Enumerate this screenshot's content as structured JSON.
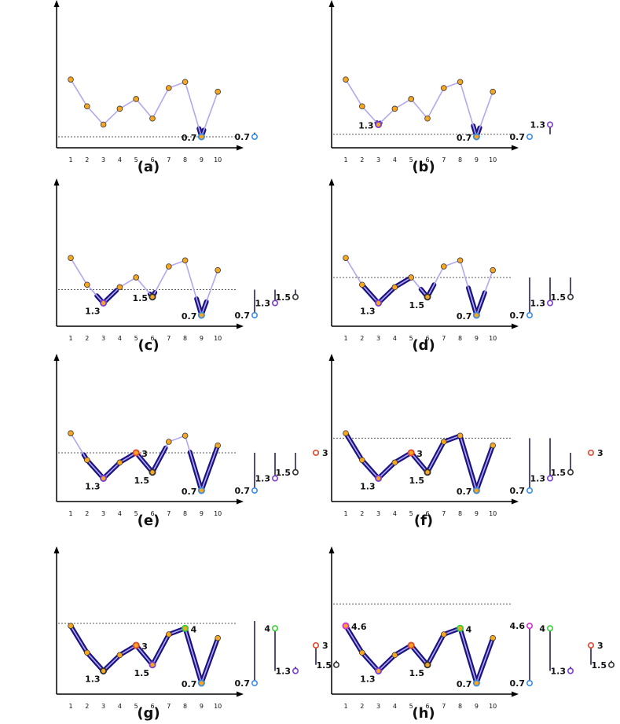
{
  "x_ticks": [
    "1",
    "2",
    "3",
    "4",
    "5",
    "6",
    "7",
    "8",
    "9",
    "10"
  ],
  "series": [
    7.2,
    5.0,
    3.5,
    4.8,
    5.6,
    4.0,
    6.5,
    7.0,
    2.5,
    6.2
  ],
  "point_color": "#f5a623",
  "line_color": "#b3a6f2",
  "band_color": "#1a1480",
  "colors": {
    "blue": "#3a8ee6",
    "purple": "#7a3fd0",
    "dark": "#333333",
    "red": "#e0452b",
    "green": "#35d035",
    "magenta": "#d52fd5"
  },
  "panels": [
    {
      "caption": "(a)",
      "level": 2.5,
      "bands": [
        {
          "from": 8.85,
          "to": 9.15
        }
      ],
      "markers": [
        {
          "i": 9,
          "color": "blue",
          "label": "0.7",
          "side": "left"
        }
      ],
      "bars": [
        {
          "value": "0.7",
          "color": "blue",
          "birth": 2.5,
          "death": 2.5
        }
      ]
    },
    {
      "caption": "(b)",
      "level": 2.7,
      "bands": [
        {
          "from": 2.9,
          "to": 3.1
        },
        {
          "from": 8.8,
          "to": 9.2
        }
      ],
      "markers": [
        {
          "i": 3,
          "color": "purple",
          "label": "1.3",
          "side": "left"
        },
        {
          "i": 9,
          "color": "blue",
          "label": "0.7",
          "side": "left"
        }
      ],
      "bars": [
        {
          "value": "0.7",
          "color": "blue",
          "birth": 2.5,
          "death": 2.7
        },
        {
          "value": "1.3",
          "color": "purple",
          "birth": 3.5,
          "death": 2.7
        }
      ]
    },
    {
      "caption": "(c)",
      "level": 4.6,
      "bands": [
        {
          "from": 2.6,
          "to": 3.8
        },
        {
          "from": 5.85,
          "to": 6.15
        },
        {
          "from": 8.7,
          "to": 9.3
        }
      ],
      "markers": [
        {
          "i": 3,
          "color": "purple",
          "label": "1.3",
          "side": "below"
        },
        {
          "i": 6,
          "color": "dark",
          "label": "1.5",
          "side": "left"
        },
        {
          "i": 9,
          "color": "blue",
          "label": "0.7",
          "side": "left"
        }
      ],
      "bars": [
        {
          "value": "0.7",
          "color": "blue",
          "birth": 2.5,
          "death": 4.6
        },
        {
          "value": "1.3",
          "color": "purple",
          "birth": 3.5,
          "death": 4.6
        },
        {
          "value": "1.5",
          "color": "dark",
          "birth": 4.0,
          "death": 4.6
        }
      ]
    },
    {
      "caption": "(d)",
      "level": 5.6,
      "bands": [
        {
          "from": 2.1,
          "to": 5.0
        },
        {
          "from": 5.6,
          "to": 6.4
        },
        {
          "from": 8.5,
          "to": 9.5
        }
      ],
      "markers": [
        {
          "i": 3,
          "color": "purple",
          "label": "1.3",
          "side": "below"
        },
        {
          "i": 6,
          "color": "dark",
          "label": "1.5",
          "side": "below"
        },
        {
          "i": 9,
          "color": "blue",
          "label": "0.7",
          "side": "left"
        }
      ],
      "bars": [
        {
          "value": "0.7",
          "color": "blue",
          "birth": 2.5,
          "death": 5.6
        },
        {
          "value": "1.3",
          "color": "purple",
          "birth": 3.5,
          "death": 5.6
        },
        {
          "value": "1.5",
          "color": "dark",
          "birth": 4.0,
          "death": 5.6
        }
      ]
    },
    {
      "caption": "(e)",
      "level": 5.6,
      "bands": [
        {
          "from": 1.8,
          "to": 5.0
        },
        {
          "from": 5.0,
          "to": 6.8
        },
        {
          "from": 8.3,
          "to": 10.0
        }
      ],
      "markers": [
        {
          "i": 3,
          "color": "purple",
          "label": "1.3",
          "side": "below"
        },
        {
          "i": 5,
          "color": "red",
          "label": "3",
          "side": "right"
        },
        {
          "i": 6,
          "color": "dark",
          "label": "1.5",
          "side": "below"
        },
        {
          "i": 9,
          "color": "blue",
          "label": "0.7",
          "side": "left"
        }
      ],
      "bars": [
        {
          "value": "0.7",
          "color": "blue",
          "birth": 2.5,
          "death": 5.6
        },
        {
          "value": "1.3",
          "color": "purple",
          "birth": 3.5,
          "death": 5.6
        },
        {
          "value": "1.5",
          "color": "dark",
          "birth": 4.0,
          "death": 5.6
        },
        {
          "value": "3",
          "color": "red",
          "birth": 5.6,
          "death": 5.6,
          "label_side": "right"
        }
      ]
    },
    {
      "caption": "(f)",
      "level": 6.8,
      "bands": [
        {
          "from": 1.0,
          "to": 8.0
        },
        {
          "from": 8.0,
          "to": 10.0
        }
      ],
      "markers": [
        {
          "i": 3,
          "color": "purple",
          "label": "1.3",
          "side": "below"
        },
        {
          "i": 5,
          "color": "red",
          "label": "3",
          "side": "right"
        },
        {
          "i": 6,
          "color": "dark",
          "label": "1.5",
          "side": "below"
        },
        {
          "i": 9,
          "color": "blue",
          "label": "0.7",
          "side": "left"
        }
      ],
      "bars": [
        {
          "value": "0.7",
          "color": "blue",
          "birth": 2.5,
          "death": 6.8
        },
        {
          "value": "1.3",
          "color": "purple",
          "birth": 3.5,
          "death": 6.8
        },
        {
          "value": "1.5",
          "color": "dark",
          "birth": 4.0,
          "death": 5.6
        },
        {
          "value": "3",
          "color": "red",
          "birth": 5.6,
          "death": 5.6,
          "label_side": "right"
        }
      ]
    },
    {
      "caption": "(g)",
      "level": 7.4,
      "bands": [
        {
          "from": 1.0,
          "to": 10.0
        }
      ],
      "markers": [
        {
          "i": 3,
          "color": "dark",
          "label": "1.3",
          "side": "below"
        },
        {
          "i": 5,
          "color": "red",
          "label": "3",
          "side": "right"
        },
        {
          "i": 6,
          "color": "purple",
          "label": "1.5",
          "side": "below"
        },
        {
          "i": 8,
          "color": "green",
          "label": "4",
          "side": "right"
        },
        {
          "i": 9,
          "color": "blue",
          "label": "0.7",
          "side": "left"
        }
      ],
      "bars": [
        {
          "value": "0.7",
          "color": "blue",
          "birth": 2.5,
          "death": 7.6
        },
        {
          "value": "4",
          "color": "green",
          "birth": 7.0,
          "death": 3.5
        },
        {
          "value": "1.3",
          "color": "purple",
          "birth": 3.5,
          "death": 3.5
        },
        {
          "value": "3",
          "color": "red",
          "birth": 5.6,
          "death": 4.0,
          "label_side": "right"
        },
        {
          "value": "1.5",
          "color": "dark",
          "birth": 4.0,
          "death": 4.0
        }
      ]
    },
    {
      "caption": "(h)",
      "level": 9.0,
      "bands": [
        {
          "from": 1.0,
          "to": 10.0
        }
      ],
      "markers": [
        {
          "i": 1,
          "color": "magenta",
          "label": "4.6",
          "side": "right"
        },
        {
          "i": 3,
          "color": "purple",
          "label": "1.3",
          "side": "below"
        },
        {
          "i": 5,
          "color": "red",
          "label": "",
          "side": "right"
        },
        {
          "i": 6,
          "color": "dark",
          "label": "1.5",
          "side": "below"
        },
        {
          "i": 8,
          "color": "green",
          "label": "4",
          "side": "right"
        },
        {
          "i": 9,
          "color": "blue",
          "label": "0.7",
          "side": "left"
        }
      ],
      "bars": [
        {
          "value": "4.6",
          "color": "magenta",
          "birth": 7.2,
          "death": 2.5,
          "bottom_label": "0.7",
          "bottom_color": "blue"
        },
        {
          "value": "4",
          "color": "green",
          "birth": 7.0,
          "death": 3.5
        },
        {
          "value": "1.3",
          "color": "purple",
          "birth": 3.5,
          "death": 3.5
        },
        {
          "value": "3",
          "color": "red",
          "birth": 5.6,
          "death": 4.0,
          "label_side": "right"
        },
        {
          "value": "1.5",
          "color": "dark",
          "birth": 4.0,
          "death": 4.0
        }
      ]
    }
  ]
}
